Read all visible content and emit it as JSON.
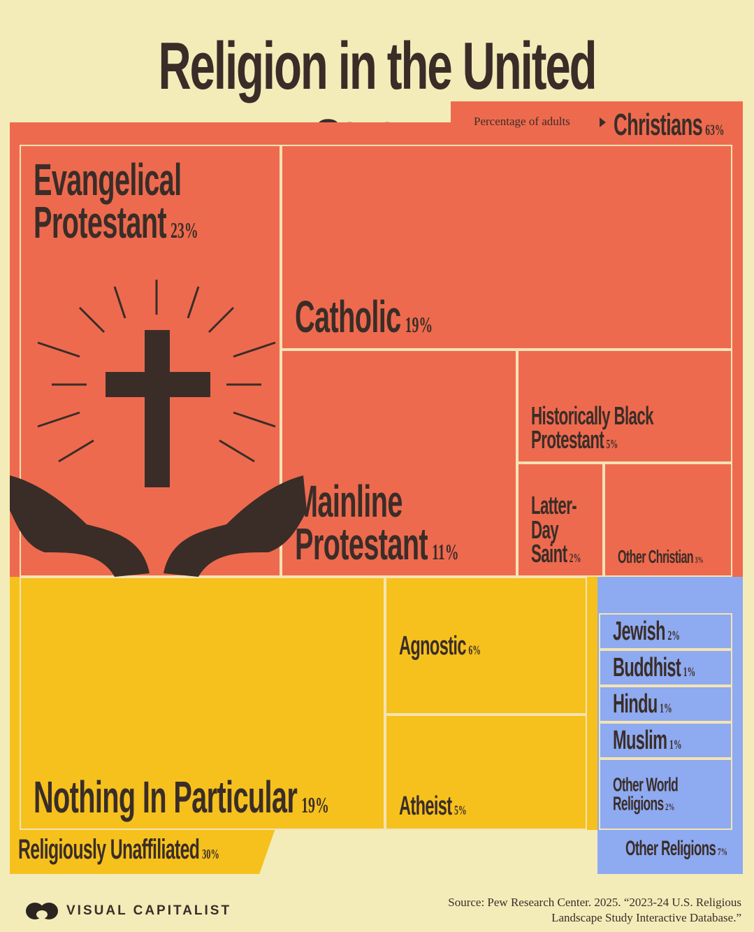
{
  "chart_data": {
    "type": "treemap",
    "title": "Religion in the United States",
    "subtitle": "Percentage of adults",
    "groups": [
      {
        "name": "Christians",
        "value": 63,
        "value_label": "63%",
        "color": "#ee6a4e",
        "children": [
          {
            "name": "Evangelical Protestant",
            "value": 23,
            "value_label": "23%"
          },
          {
            "name": "Catholic",
            "value": 19,
            "value_label": "19%"
          },
          {
            "name": "Mainline Protestant",
            "value": 11,
            "value_label": "11%"
          },
          {
            "name": "Historically Black Protestant",
            "value": 5,
            "value_label": "5%"
          },
          {
            "name": "Latter-Day Saint",
            "value": 2,
            "value_label": "2%"
          },
          {
            "name": "Other Christian",
            "value": 3,
            "value_label": "3%"
          }
        ]
      },
      {
        "name": "Religiously Unaffiliated",
        "value": 30,
        "value_label": "30%",
        "color": "#f6c11d",
        "children": [
          {
            "name": "Nothing In Particular",
            "value": 19,
            "value_label": "19%"
          },
          {
            "name": "Agnostic",
            "value": 6,
            "value_label": "6%"
          },
          {
            "name": "Atheist",
            "value": 5,
            "value_label": "5%"
          }
        ]
      },
      {
        "name": "Other Religions",
        "value": 7,
        "value_label": "7%",
        "color": "#8eaaf0",
        "children": [
          {
            "name": "Jewish",
            "value": 2,
            "value_label": "2%"
          },
          {
            "name": "Buddhist",
            "value": 1,
            "value_label": "1%"
          },
          {
            "name": "Hindu",
            "value": 1,
            "value_label": "1%"
          },
          {
            "name": "Muslim",
            "value": 1,
            "value_label": "1%"
          },
          {
            "name": "Other World Religions",
            "value": 2,
            "value_label": "2%"
          }
        ]
      }
    ],
    "brand": "VISUAL CAPITALIST",
    "source": "Source: Pew Research Center. 2025. “2023-24 U.S. Religious Landscape Study Interactive Database.”"
  }
}
